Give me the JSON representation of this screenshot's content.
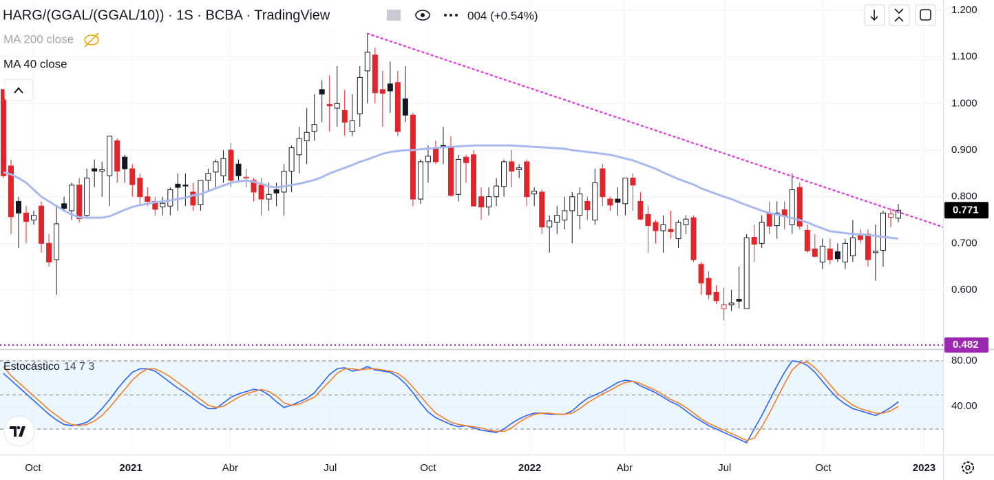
{
  "chart_data": [
    {
      "type": "candlestick",
      "title": "HARG/(GGAL/(GGAL/10)) · 1S · BCBA · TradingView",
      "header_change": "004 (+0.54%)",
      "up_color": "#131722",
      "down_color": "#e0262b",
      "xlim": [
        -0.45,
        123.9
      ],
      "xticks": [
        {
          "value": 3.9,
          "label": "Oct"
        },
        {
          "value": 16.8,
          "label": "2021"
        },
        {
          "value": 29.9,
          "label": "Abr"
        },
        {
          "value": 43.1,
          "label": "Jul"
        },
        {
          "value": 56.0,
          "label": "Oct"
        },
        {
          "value": 69.4,
          "label": "2022"
        },
        {
          "value": 81.9,
          "label": "Abr"
        },
        {
          "value": 95.1,
          "label": "Jul"
        },
        {
          "value": 108.1,
          "label": "Oct"
        },
        {
          "value": 121.4,
          "label": "2023"
        }
      ],
      "ylim": [
        0.476,
        1.222
      ],
      "yticks": [
        {
          "value": 1.2,
          "label": "1.200"
        },
        {
          "value": 1.1,
          "label": "1.100"
        },
        {
          "value": 1.0,
          "label": "1.000"
        },
        {
          "value": 0.9,
          "label": "0.900"
        },
        {
          "value": 0.8,
          "label": "0.800"
        },
        {
          "value": 0.7,
          "label": "0.700"
        },
        {
          "value": 0.6,
          "label": "0.600"
        }
      ],
      "grid": true,
      "ohlc": [
        [
          1.03,
          1.03,
          0.84,
          0.845
        ],
        [
          0.866,
          0.88,
          0.72,
          0.757
        ],
        [
          0.79,
          0.8,
          0.69,
          0.765
        ],
        [
          0.765,
          0.78,
          0.7,
          0.747
        ],
        [
          0.75,
          0.77,
          0.74,
          0.76
        ],
        [
          0.78,
          0.79,
          0.68,
          0.7
        ],
        [
          0.7,
          0.72,
          0.65,
          0.66
        ],
        [
          0.665,
          0.78,
          0.59,
          0.742
        ],
        [
          0.785,
          0.8,
          0.77,
          0.775
        ],
        [
          0.77,
          0.83,
          0.75,
          0.825
        ],
        [
          0.825,
          0.84,
          0.745,
          0.753
        ],
        [
          0.76,
          0.86,
          0.755,
          0.84
        ],
        [
          0.86,
          0.88,
          0.82,
          0.855
        ],
        [
          0.855,
          0.875,
          0.8,
          0.858
        ],
        [
          0.845,
          0.93,
          0.78,
          0.93
        ],
        [
          0.92,
          0.925,
          0.83,
          0.855
        ],
        [
          0.885,
          0.89,
          0.83,
          0.86
        ],
        [
          0.86,
          0.87,
          0.8,
          0.826
        ],
        [
          0.84,
          0.85,
          0.78,
          0.8
        ],
        [
          0.8,
          0.82,
          0.78,
          0.79
        ],
        [
          0.79,
          0.8,
          0.76,
          0.773
        ],
        [
          0.778,
          0.8,
          0.76,
          0.786
        ],
        [
          0.78,
          0.82,
          0.76,
          0.815
        ],
        [
          0.827,
          0.85,
          0.77,
          0.82
        ],
        [
          0.825,
          0.85,
          0.78,
          0.823
        ],
        [
          0.81,
          0.83,
          0.77,
          0.782
        ],
        [
          0.783,
          0.83,
          0.77,
          0.835
        ],
        [
          0.835,
          0.86,
          0.81,
          0.85
        ],
        [
          0.853,
          0.88,
          0.82,
          0.875
        ],
        [
          0.845,
          0.9,
          0.83,
          0.882
        ],
        [
          0.9,
          0.915,
          0.82,
          0.835
        ],
        [
          0.87,
          0.88,
          0.83,
          0.845
        ],
        [
          0.84,
          0.86,
          0.82,
          0.842
        ],
        [
          0.835,
          0.84,
          0.79,
          0.81
        ],
        [
          0.825,
          0.84,
          0.76,
          0.795
        ],
        [
          0.795,
          0.83,
          0.77,
          0.805
        ],
        [
          0.815,
          0.83,
          0.78,
          0.808
        ],
        [
          0.81,
          0.87,
          0.76,
          0.855
        ],
        [
          0.855,
          0.91,
          0.81,
          0.905
        ],
        [
          0.89,
          0.95,
          0.85,
          0.925
        ],
        [
          0.92,
          0.99,
          0.87,
          0.938
        ],
        [
          0.94,
          1.02,
          0.92,
          0.955
        ],
        [
          1.03,
          1.05,
          0.96,
          1.02
        ],
        [
          0.998,
          1.06,
          0.94,
          0.995
        ],
        [
          0.99,
          1.08,
          0.95,
          1.0
        ],
        [
          0.985,
          1.03,
          0.93,
          0.96
        ],
        [
          0.94,
          1.02,
          0.93,
          0.963
        ],
        [
          0.978,
          1.08,
          0.95,
          1.056
        ],
        [
          1.07,
          1.15,
          1.0,
          1.11
        ],
        [
          1.104,
          1.12,
          1.0,
          1.023
        ],
        [
          1.03,
          1.07,
          0.95,
          1.022
        ],
        [
          1.042,
          1.09,
          0.98,
          1.027
        ],
        [
          1.045,
          1.07,
          0.93,
          0.94
        ],
        [
          1.01,
          1.08,
          0.96,
          0.975
        ],
        [
          0.975,
          0.98,
          0.78,
          0.795
        ],
        [
          0.795,
          0.88,
          0.785,
          0.875
        ],
        [
          0.875,
          0.91,
          0.83,
          0.887
        ],
        [
          0.905,
          0.92,
          0.87,
          0.875
        ],
        [
          0.91,
          0.95,
          0.87,
          0.905
        ],
        [
          0.905,
          0.93,
          0.8,
          0.803
        ],
        [
          0.805,
          0.89,
          0.79,
          0.88
        ],
        [
          0.885,
          0.89,
          0.83,
          0.873
        ],
        [
          0.89,
          0.9,
          0.78,
          0.78
        ],
        [
          0.8,
          0.82,
          0.75,
          0.778
        ],
        [
          0.778,
          0.82,
          0.76,
          0.8
        ],
        [
          0.8,
          0.84,
          0.78,
          0.823
        ],
        [
          0.822,
          0.88,
          0.8,
          0.875
        ],
        [
          0.875,
          0.9,
          0.82,
          0.855
        ],
        [
          0.858,
          0.87,
          0.84,
          0.862
        ],
        [
          0.875,
          0.88,
          0.78,
          0.8
        ],
        [
          0.806,
          0.82,
          0.78,
          0.812
        ],
        [
          0.81,
          0.815,
          0.72,
          0.735
        ],
        [
          0.735,
          0.76,
          0.68,
          0.748
        ],
        [
          0.745,
          0.78,
          0.72,
          0.76
        ],
        [
          0.75,
          0.8,
          0.73,
          0.77
        ],
        [
          0.77,
          0.81,
          0.7,
          0.8
        ],
        [
          0.76,
          0.82,
          0.73,
          0.806
        ],
        [
          0.79,
          0.8,
          0.75,
          0.772
        ],
        [
          0.75,
          0.86,
          0.74,
          0.83
        ],
        [
          0.86,
          0.87,
          0.78,
          0.8
        ],
        [
          0.795,
          0.8,
          0.77,
          0.782
        ],
        [
          0.795,
          0.82,
          0.76,
          0.788
        ],
        [
          0.785,
          0.84,
          0.76,
          0.84
        ],
        [
          0.84,
          0.85,
          0.77,
          0.825
        ],
        [
          0.79,
          0.81,
          0.75,
          0.752
        ],
        [
          0.762,
          0.78,
          0.68,
          0.738
        ],
        [
          0.745,
          0.75,
          0.7,
          0.727
        ],
        [
          0.727,
          0.76,
          0.68,
          0.74
        ],
        [
          0.73,
          0.77,
          0.71,
          0.725
        ],
        [
          0.71,
          0.75,
          0.69,
          0.745
        ],
        [
          0.74,
          0.76,
          0.72,
          0.752
        ],
        [
          0.755,
          0.76,
          0.66,
          0.665
        ],
        [
          0.655,
          0.66,
          0.59,
          0.615
        ],
        [
          0.625,
          0.64,
          0.58,
          0.59
        ],
        [
          0.595,
          0.61,
          0.57,
          0.577
        ],
        [
          0.56,
          0.605,
          0.535,
          0.568
        ],
        [
          0.568,
          0.6,
          0.555,
          0.572
        ],
        [
          0.58,
          0.65,
          0.56,
          0.576
        ],
        [
          0.56,
          0.72,
          0.56,
          0.712
        ],
        [
          0.713,
          0.74,
          0.66,
          0.698
        ],
        [
          0.7,
          0.76,
          0.69,
          0.745
        ],
        [
          0.765,
          0.79,
          0.72,
          0.737
        ],
        [
          0.738,
          0.79,
          0.71,
          0.765
        ],
        [
          0.772,
          0.79,
          0.73,
          0.76
        ],
        [
          0.74,
          0.85,
          0.72,
          0.815
        ],
        [
          0.82,
          0.83,
          0.73,
          0.737
        ],
        [
          0.728,
          0.74,
          0.68,
          0.684
        ],
        [
          0.688,
          0.72,
          0.67,
          0.672
        ],
        [
          0.66,
          0.71,
          0.645,
          0.694
        ],
        [
          0.688,
          0.71,
          0.655,
          0.665
        ],
        [
          0.682,
          0.7,
          0.66,
          0.667
        ],
        [
          0.66,
          0.71,
          0.645,
          0.7
        ],
        [
          0.673,
          0.75,
          0.66,
          0.712
        ],
        [
          0.718,
          0.73,
          0.7,
          0.708
        ],
        [
          0.72,
          0.73,
          0.65,
          0.665
        ],
        [
          0.68,
          0.74,
          0.62,
          0.683
        ],
        [
          0.685,
          0.77,
          0.65,
          0.765
        ],
        [
          0.756,
          0.775,
          0.735,
          0.763
        ],
        [
          0.754,
          0.785,
          0.745,
          0.771
        ]
      ],
      "series": [
        {
          "name": "MA 40 close",
          "color": "#a9b9ee",
          "values": [
            0.852,
            0.848,
            0.84,
            0.83,
            0.815,
            0.8,
            0.79,
            0.78,
            0.77,
            0.762,
            0.756,
            0.755,
            0.755,
            0.755,
            0.758,
            0.765,
            0.772,
            0.778,
            0.782,
            0.785,
            0.788,
            0.79,
            0.792,
            0.795,
            0.798,
            0.803,
            0.806,
            0.812,
            0.818,
            0.824,
            0.83,
            0.833,
            0.835,
            0.832,
            0.828,
            0.822,
            0.82,
            0.822,
            0.825,
            0.828,
            0.832,
            0.836,
            0.842,
            0.85,
            0.856,
            0.862,
            0.868,
            0.875,
            0.88,
            0.886,
            0.892,
            0.896,
            0.898,
            0.9,
            0.9,
            0.902,
            0.903,
            0.905,
            0.906,
            0.907,
            0.908,
            0.909,
            0.91,
            0.91,
            0.91,
            0.91,
            0.91,
            0.91,
            0.909,
            0.908,
            0.907,
            0.906,
            0.905,
            0.904,
            0.903,
            0.9,
            0.898,
            0.896,
            0.894,
            0.892,
            0.89,
            0.886,
            0.882,
            0.878,
            0.872,
            0.866,
            0.86,
            0.852,
            0.845,
            0.838,
            0.832,
            0.826,
            0.818,
            0.812,
            0.806,
            0.8,
            0.795,
            0.788,
            0.782,
            0.776,
            0.77,
            0.765,
            0.762,
            0.758,
            0.754,
            0.75,
            0.745,
            0.738,
            0.732,
            0.726,
            0.724,
            0.722,
            0.72,
            0.719,
            0.718,
            0.716,
            0.714,
            0.712,
            0.71
          ]
        }
      ],
      "hidden_series": [
        {
          "name": "MA 200 close",
          "color": "#f7a600"
        }
      ],
      "trendline": {
        "x": [
          48,
          123.9
        ],
        "y": [
          1.15,
          0.735
        ],
        "color": "#e040e0"
      },
      "hline": {
        "value": 0.482,
        "label": "0.482",
        "color": "#9c27b0"
      }
    },
    {
      "type": "line",
      "title": "Estocástico",
      "params": "14 7 3",
      "ylim": [
        -2.4,
        88.5
      ],
      "yticks": [
        {
          "value": 80,
          "label": "80.00"
        },
        {
          "value": 40,
          "label": "40.00"
        }
      ],
      "levels": [
        20,
        50,
        80
      ],
      "band_color": "#e3f2fd",
      "series": [
        {
          "color": "#2962ff",
          "values": [
            69,
            63,
            57,
            51,
            45,
            39,
            33,
            28,
            24,
            23,
            24,
            26,
            31,
            38,
            46,
            55,
            63,
            70,
            73,
            73,
            71,
            66,
            61,
            56,
            52,
            47,
            42,
            38,
            38,
            43,
            48,
            51,
            53,
            55,
            54,
            50,
            44,
            39,
            41,
            44,
            47,
            52,
            60,
            68,
            73,
            74,
            71,
            72,
            75,
            72,
            71,
            70,
            66,
            60,
            52,
            43,
            35,
            30,
            27,
            24,
            22,
            23,
            21,
            19,
            18,
            17,
            20,
            25,
            29,
            32,
            34,
            34,
            33,
            33,
            33,
            36,
            42,
            47,
            50,
            53,
            57,
            61,
            63,
            62,
            58,
            55,
            52,
            48,
            44,
            41,
            36,
            31,
            27,
            23,
            20,
            17,
            14,
            11,
            8,
            20,
            32,
            45,
            58,
            70,
            80,
            79,
            76,
            70,
            62,
            54,
            47,
            42,
            38,
            36,
            34,
            32,
            35,
            39,
            44
          ]
        },
        {
          "color": "#f57c2a",
          "values": [
            75,
            67,
            61,
            55,
            49,
            43,
            37,
            32,
            27,
            24,
            23,
            24,
            27,
            32,
            39,
            47,
            55,
            63,
            69,
            73,
            73,
            70,
            66,
            61,
            56,
            51,
            46,
            41,
            39,
            40,
            44,
            48,
            51,
            53,
            55,
            53,
            49,
            43,
            41,
            42,
            45,
            48,
            55,
            62,
            69,
            73,
            73,
            72,
            73,
            73,
            72,
            71,
            69,
            64,
            57,
            49,
            41,
            34,
            30,
            26,
            24,
            23,
            22,
            21,
            19,
            18,
            18,
            21,
            26,
            30,
            33,
            34,
            34,
            33,
            33,
            34,
            38,
            43,
            47,
            51,
            54,
            58,
            61,
            62,
            60,
            57,
            54,
            50,
            46,
            43,
            39,
            34,
            29,
            25,
            22,
            19,
            16,
            13,
            10,
            12,
            22,
            34,
            47,
            60,
            72,
            78,
            79,
            74,
            67,
            59,
            51,
            46,
            41,
            38,
            36,
            34,
            34,
            36,
            40
          ]
        }
      ]
    }
  ]
}
